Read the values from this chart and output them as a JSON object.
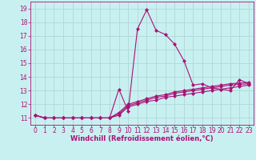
{
  "xlabel": "Windchill (Refroidissement éolien,°C)",
  "bg_color": "#c8f0f0",
  "line_color": "#aa1177",
  "grid_color": "#b0d8d8",
  "xlim": [
    -0.5,
    23.5
  ],
  "ylim": [
    10.5,
    19.5
  ],
  "xticks": [
    0,
    1,
    2,
    3,
    4,
    5,
    6,
    7,
    8,
    9,
    10,
    11,
    12,
    13,
    14,
    15,
    16,
    17,
    18,
    19,
    20,
    21,
    22,
    23
  ],
  "yticks": [
    11,
    12,
    13,
    14,
    15,
    16,
    17,
    18,
    19
  ],
  "series": [
    [
      11.2,
      11.0,
      11.0,
      11.0,
      11.0,
      11.0,
      11.0,
      11.0,
      11.0,
      13.1,
      11.5,
      17.5,
      18.9,
      17.4,
      17.1,
      16.4,
      15.2,
      13.4,
      13.5,
      13.2,
      13.1,
      13.0,
      13.8,
      13.5
    ],
    [
      11.2,
      11.0,
      11.0,
      11.0,
      11.0,
      11.0,
      11.0,
      11.0,
      11.0,
      11.2,
      11.8,
      12.0,
      12.2,
      12.3,
      12.5,
      12.6,
      12.7,
      12.8,
      12.9,
      13.0,
      13.1,
      13.2,
      13.3,
      13.4
    ],
    [
      11.2,
      11.0,
      11.0,
      11.0,
      11.0,
      11.0,
      11.0,
      11.0,
      11.0,
      11.3,
      11.9,
      12.1,
      12.3,
      12.5,
      12.6,
      12.8,
      12.9,
      13.0,
      13.1,
      13.2,
      13.3,
      13.4,
      13.45,
      13.5
    ],
    [
      11.2,
      11.0,
      11.0,
      11.0,
      11.0,
      11.0,
      11.0,
      11.0,
      11.0,
      11.4,
      12.0,
      12.2,
      12.4,
      12.6,
      12.7,
      12.9,
      13.0,
      13.1,
      13.2,
      13.3,
      13.4,
      13.5,
      13.55,
      13.6
    ]
  ],
  "marker": "D",
  "markersize": 2.0,
  "linewidth": 0.8,
  "tick_fontsize": 5.5,
  "xlabel_fontsize": 6.0
}
